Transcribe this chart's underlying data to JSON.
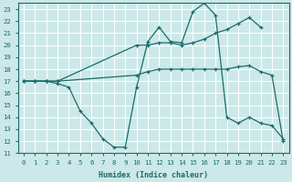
{
  "xlabel": "Humidex (Indice chaleur)",
  "bg_color": "#cce8e8",
  "grid_color": "#ffffff",
  "line_color": "#1a6b6b",
  "xlim": [
    -0.5,
    23.5
  ],
  "ylim": [
    11,
    23.5
  ],
  "xticks": [
    0,
    1,
    2,
    3,
    4,
    5,
    6,
    7,
    8,
    9,
    10,
    11,
    12,
    13,
    14,
    15,
    16,
    17,
    18,
    19,
    20,
    21,
    22,
    23
  ],
  "yticks": [
    11,
    12,
    13,
    14,
    15,
    16,
    17,
    18,
    19,
    20,
    21,
    22,
    23
  ],
  "line1_x": [
    0,
    1,
    2,
    3,
    10,
    11,
    12,
    13,
    14,
    15,
    16,
    17,
    18,
    19,
    20,
    21
  ],
  "line1_y": [
    17,
    17,
    17,
    17,
    20,
    20,
    20.2,
    20.2,
    20,
    20.2,
    20.5,
    21,
    21.3,
    21.8,
    22.3,
    21.5
  ],
  "line2_x": [
    0,
    1,
    2,
    3,
    10,
    11,
    12,
    13,
    14,
    15,
    16,
    17,
    18,
    19,
    20,
    21,
    22,
    23
  ],
  "line2_y": [
    17,
    17,
    17,
    17,
    17.5,
    17.8,
    18,
    18,
    18,
    18,
    18,
    18,
    18,
    18.2,
    18.3,
    17.8,
    17.5,
    12
  ],
  "line3_x": [
    0,
    1,
    2,
    3,
    4,
    5,
    6,
    7,
    8,
    9,
    10,
    11,
    12,
    13,
    14,
    15,
    16,
    17,
    18,
    19,
    20,
    21,
    22,
    23
  ],
  "line3_y": [
    17,
    17,
    17,
    16.8,
    16.5,
    14.5,
    13.5,
    12.2,
    11.5,
    11.5,
    16.5,
    20.3,
    21.5,
    20.3,
    20.2,
    22.8,
    23.5,
    22.5,
    14,
    13.5,
    14,
    13.5,
    13.3,
    12.2
  ]
}
